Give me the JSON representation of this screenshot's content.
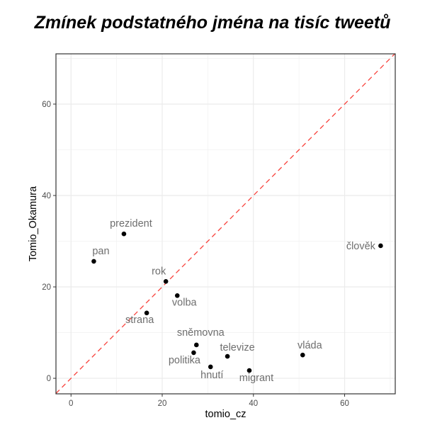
{
  "chart_data": {
    "type": "scatter",
    "title": "Zmínek podstatného jména na tisíc tweetů",
    "xlabel": "tomio_cz",
    "ylabel": "Tomio_Okamura",
    "xlim": [
      -3.3,
      71.1
    ],
    "ylim": [
      -3.4,
      71.0
    ],
    "x_ticks": [
      0,
      20,
      40,
      60
    ],
    "y_ticks": [
      0,
      20,
      40,
      60
    ],
    "grid": true,
    "reference_line": {
      "type": "y=x",
      "style": "dashed",
      "color": "#f8423c"
    },
    "points": [
      {
        "label": "pan",
        "x": 5.0,
        "y": 25.6
      },
      {
        "label": "prezident",
        "x": 11.6,
        "y": 31.6
      },
      {
        "label": "rok",
        "x": 20.8,
        "y": 21.2
      },
      {
        "label": "volba",
        "x": 23.3,
        "y": 18.1
      },
      {
        "label": "strana",
        "x": 16.6,
        "y": 14.3
      },
      {
        "label": "sněmovna",
        "x": 27.5,
        "y": 7.3
      },
      {
        "label": "politika",
        "x": 26.9,
        "y": 5.6
      },
      {
        "label": "hnutí",
        "x": 30.6,
        "y": 2.5
      },
      {
        "label": "televize",
        "x": 34.3,
        "y": 4.8
      },
      {
        "label": "migrant",
        "x": 39.1,
        "y": 1.7
      },
      {
        "label": "vláda",
        "x": 50.8,
        "y": 5.1
      },
      {
        "label": "člověk",
        "x": 67.9,
        "y": 29.0
      }
    ]
  },
  "label_offsets": {
    "pan": [
      10,
      -10,
      "middle"
    ],
    "prezident": [
      10,
      -10,
      "middle"
    ],
    "rok": [
      -10,
      -10,
      "middle"
    ],
    "volba": [
      10,
      14,
      "middle"
    ],
    "strana": [
      -10,
      14,
      "middle"
    ],
    "sněmovna": [
      6,
      -13,
      "middle"
    ],
    "politika": [
      -13,
      15,
      "middle"
    ],
    "hnutí": [
      2,
      16,
      "middle"
    ],
    "televize": [
      14,
      -8,
      "middle"
    ],
    "migrant": [
      10,
      15,
      "middle"
    ],
    "vláda": [
      10,
      -9,
      "middle"
    ],
    "člověk": [
      -28,
      5,
      "middle"
    ]
  }
}
